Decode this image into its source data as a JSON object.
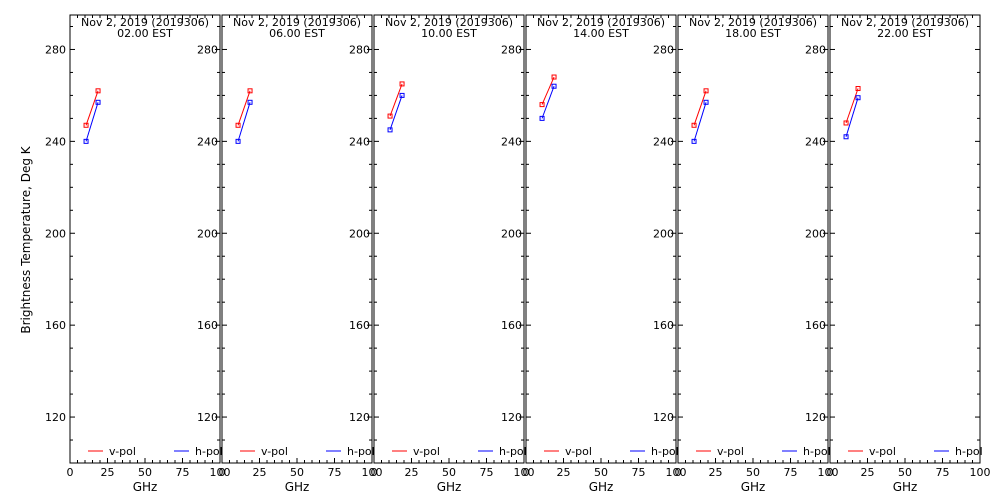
{
  "chart_data": {
    "type": "line",
    "ylabel": "Brightness Temperature, Deg K",
    "xlabel": "GHz",
    "xlim": [
      0,
      100
    ],
    "ylim": [
      100,
      295
    ],
    "xticks": [
      "0",
      "25",
      "50",
      "75",
      "100"
    ],
    "yticks": [
      "120",
      "160",
      "200",
      "240",
      "280"
    ],
    "legend": [
      {
        "name": "v-pol",
        "color": "#ff0000"
      },
      {
        "name": "h-pol",
        "color": "#0000ff"
      }
    ],
    "panels": [
      {
        "title_line1": "Nov  2, 2019 (2019306)",
        "title_line2": "02.00 EST",
        "series": [
          {
            "name": "v-pol",
            "color": "#ff0000",
            "x": [
              10.7,
              18.7
            ],
            "y": [
              247,
              262
            ]
          },
          {
            "name": "h-pol",
            "color": "#0000ff",
            "x": [
              10.7,
              18.7
            ],
            "y": [
              240,
              257
            ]
          }
        ]
      },
      {
        "title_line1": "Nov  2, 2019 (2019306)",
        "title_line2": "06.00 EST",
        "series": [
          {
            "name": "v-pol",
            "color": "#ff0000",
            "x": [
              10.7,
              18.7
            ],
            "y": [
              247,
              262
            ]
          },
          {
            "name": "h-pol",
            "color": "#0000ff",
            "x": [
              10.7,
              18.7
            ],
            "y": [
              240,
              257
            ]
          }
        ]
      },
      {
        "title_line1": "Nov  2, 2019 (2019306)",
        "title_line2": "10.00 EST",
        "series": [
          {
            "name": "v-pol",
            "color": "#ff0000",
            "x": [
              10.7,
              18.7
            ],
            "y": [
              251,
              265
            ]
          },
          {
            "name": "h-pol",
            "color": "#0000ff",
            "x": [
              10.7,
              18.7
            ],
            "y": [
              245,
              260
            ]
          }
        ]
      },
      {
        "title_line1": "Nov  2, 2019 (2019306)",
        "title_line2": "14.00 EST",
        "series": [
          {
            "name": "v-pol",
            "color": "#ff0000",
            "x": [
              10.7,
              18.7
            ],
            "y": [
              256,
              268
            ]
          },
          {
            "name": "h-pol",
            "color": "#0000ff",
            "x": [
              10.7,
              18.7
            ],
            "y": [
              250,
              264
            ]
          }
        ]
      },
      {
        "title_line1": "Nov  2, 2019 (2019306)",
        "title_line2": "18.00 EST",
        "series": [
          {
            "name": "v-pol",
            "color": "#ff0000",
            "x": [
              10.7,
              18.7
            ],
            "y": [
              247,
              262
            ]
          },
          {
            "name": "h-pol",
            "color": "#0000ff",
            "x": [
              10.7,
              18.7
            ],
            "y": [
              240,
              257
            ]
          }
        ]
      },
      {
        "title_line1": "Nov  2, 2019 (2019306)",
        "title_line2": "22.00 EST",
        "series": [
          {
            "name": "v-pol",
            "color": "#ff0000",
            "x": [
              10.7,
              18.7
            ],
            "y": [
              248,
              263
            ]
          },
          {
            "name": "h-pol",
            "color": "#0000ff",
            "x": [
              10.7,
              18.7
            ],
            "y": [
              242,
              259
            ]
          }
        ]
      }
    ]
  }
}
